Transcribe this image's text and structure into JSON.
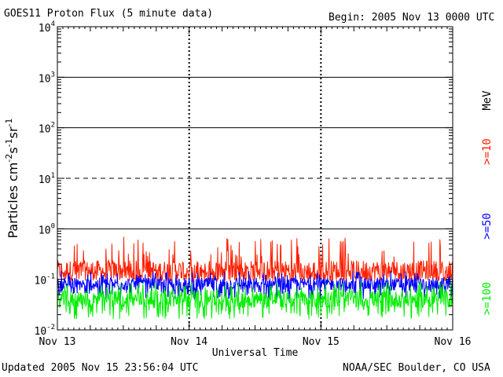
{
  "chart_data": {
    "type": "line",
    "title": "GOES11 Proton Flux (5 minute data)",
    "begin": "Begin: 2005 Nov 13 0000 UTC",
    "xlabel": "Universal Time",
    "ylabel": "Particles cm^-2 s^-1 sr^-1",
    "ylabel_parts": [
      "Particles cm",
      "-2",
      "s",
      "-1",
      "sr",
      "-1"
    ],
    "yscale": "log",
    "ylim": [
      0.01,
      10000
    ],
    "yticks": [
      {
        "value": 0.01,
        "base": "10",
        "exp": "-2"
      },
      {
        "value": 0.1,
        "base": "10",
        "exp": "-1"
      },
      {
        "value": 1,
        "base": "10",
        "exp": "0"
      },
      {
        "value": 10,
        "base": "10",
        "exp": "1"
      },
      {
        "value": 100,
        "base": "10",
        "exp": "2"
      },
      {
        "value": 1000,
        "base": "10",
        "exp": "3"
      },
      {
        "value": 10000,
        "base": "10",
        "exp": "4"
      }
    ],
    "xlim_days": [
      0,
      3
    ],
    "xticks": [
      {
        "day": 0,
        "label": "Nov 13"
      },
      {
        "day": 1,
        "label": "Nov 14"
      },
      {
        "day": 2,
        "label": "Nov 15"
      },
      {
        "day": 3,
        "label": "Nov 16"
      }
    ],
    "threshold_lines": [
      {
        "value": 1,
        "style": "solid"
      },
      {
        "value": 10,
        "style": "dashed"
      },
      {
        "value": 100,
        "style": "solid"
      },
      {
        "value": 1000,
        "style": "solid"
      }
    ],
    "series": [
      {
        "name": ">=10",
        "color": "#ff2000",
        "typical": 0.15,
        "min": 0.09,
        "max": 0.7
      },
      {
        "name": ">=50",
        "color": "#0000ff",
        "typical": 0.08,
        "min": 0.04,
        "max": 0.15
      },
      {
        "name": ">=100",
        "color": "#00ee00",
        "typical": 0.04,
        "min": 0.016,
        "max": 0.09
      }
    ],
    "legend_unit": "MeV"
  },
  "footer": {
    "updated": "Updated 2005 Nov 15 23:56:04 UTC",
    "credit": "NOAA/SEC Boulder, CO USA"
  }
}
